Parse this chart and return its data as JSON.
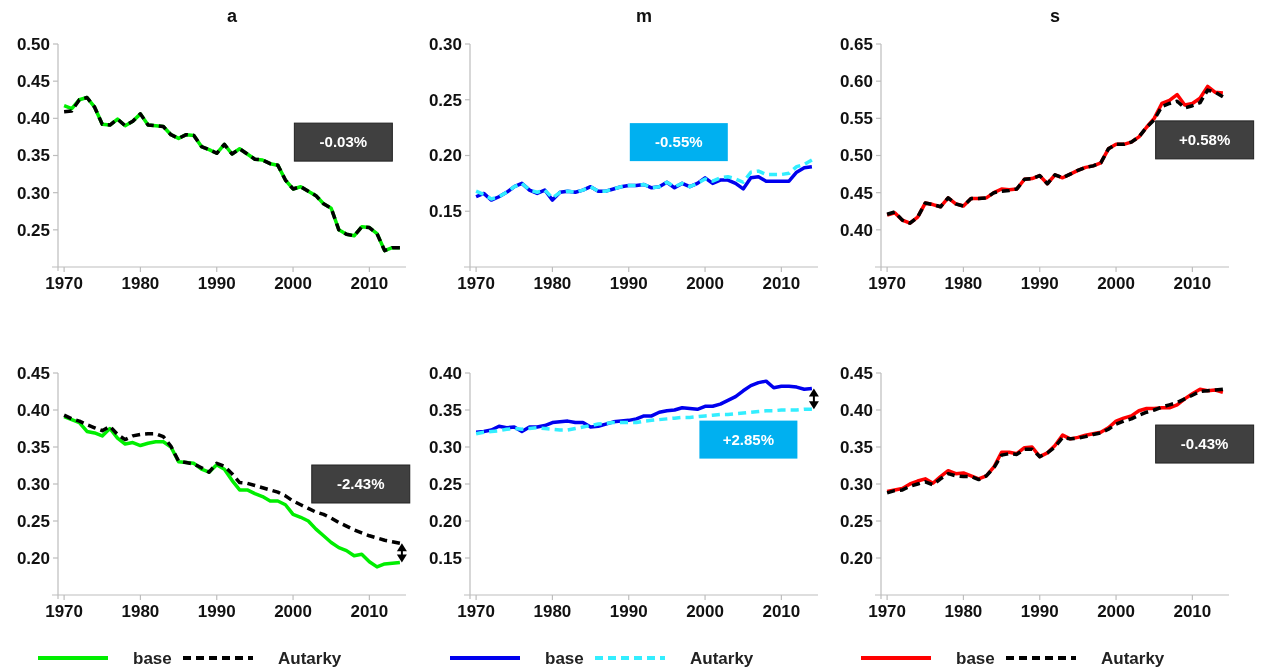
{
  "chart_data": [
    {
      "type": "line",
      "title": "a",
      "x": [
        1970,
        1971,
        1972,
        1973,
        1974,
        1975,
        1976,
        1977,
        1978,
        1979,
        1980,
        1981,
        1982,
        1983,
        1984,
        1985,
        1986,
        1987,
        1988,
        1989,
        1990,
        1991,
        1992,
        1993,
        1994,
        1995,
        1996,
        1997,
        1998,
        1999,
        2000,
        2001,
        2002,
        2003,
        2004,
        2005,
        2006,
        2007,
        2008,
        2009,
        2010,
        2011,
        2012,
        2013,
        2014
      ],
      "xlim": [
        1969.2,
        2014.8
      ],
      "xticks": [
        1970,
        1980,
        1990,
        2000,
        2010
      ],
      "ylim": [
        0.2,
        0.5
      ],
      "yticks": [
        0.25,
        {
          "value": 0.3,
          "label": "0.30"
        },
        0.35,
        {
          "value": 0.4,
          "label": "0.40"
        },
        0.45,
        {
          "value": 0.5,
          "label": "0.50"
        }
      ],
      "annotations": [
        "-0.03%"
      ],
      "series": [
        {
          "color": "#00ee00",
          "line_style": "solid",
          "values": [
            0.417,
            0.413,
            0.425,
            0.428,
            0.415,
            0.392,
            0.391,
            0.399,
            0.39,
            0.396,
            0.406,
            0.391,
            0.39,
            0.389,
            0.378,
            0.373,
            0.378,
            0.377,
            0.362,
            0.358,
            0.353,
            0.365,
            0.352,
            0.359,
            0.352,
            0.345,
            0.344,
            0.339,
            0.337,
            0.317,
            0.305,
            0.308,
            0.302,
            0.296,
            0.285,
            0.279,
            0.25,
            0.244,
            0.242,
            0.254,
            0.253,
            0.245,
            0.222,
            0.226,
            0.226
          ]
        },
        {
          "color": "#000000",
          "line_style": "dashed",
          "values": [
            0.409,
            0.41,
            0.425,
            0.428,
            0.415,
            0.392,
            0.391,
            0.399,
            0.39,
            0.396,
            0.406,
            0.391,
            0.39,
            0.389,
            0.378,
            0.373,
            0.378,
            0.377,
            0.362,
            0.358,
            0.353,
            0.365,
            0.352,
            0.359,
            0.352,
            0.345,
            0.344,
            0.339,
            0.337,
            0.317,
            0.305,
            0.308,
            0.302,
            0.296,
            0.285,
            0.279,
            0.25,
            0.244,
            0.242,
            0.254,
            0.253,
            0.245,
            0.222,
            0.226,
            0.226
          ]
        }
      ]
    },
    {
      "type": "line",
      "title": "m",
      "x": [
        1970,
        1971,
        1972,
        1973,
        1974,
        1975,
        1976,
        1977,
        1978,
        1979,
        1980,
        1981,
        1982,
        1983,
        1984,
        1985,
        1986,
        1987,
        1988,
        1989,
        1990,
        1991,
        1992,
        1993,
        1994,
        1995,
        1996,
        1997,
        1998,
        1999,
        2000,
        2001,
        2002,
        2003,
        2004,
        2005,
        2006,
        2007,
        2008,
        2009,
        2010,
        2011,
        2012,
        2013,
        2014
      ],
      "xlim": [
        1969.2,
        2014.8
      ],
      "xticks": [
        1970,
        1980,
        1990,
        2000,
        2010
      ],
      "ylim": [
        0.1,
        0.3
      ],
      "yticks": [
        0.15,
        {
          "value": 0.2,
          "label": "0.20"
        },
        0.25,
        {
          "value": 0.3,
          "label": "0.30"
        }
      ],
      "annotations": [
        "-0.55%"
      ],
      "series": [
        {
          "color": "#0000ee",
          "line_style": "solid",
          "values": [
            0.163,
            0.166,
            0.16,
            0.163,
            0.167,
            0.172,
            0.175,
            0.169,
            0.166,
            0.169,
            0.16,
            0.167,
            0.168,
            0.167,
            0.169,
            0.172,
            0.168,
            0.168,
            0.17,
            0.172,
            0.173,
            0.173,
            0.174,
            0.171,
            0.172,
            0.176,
            0.171,
            0.175,
            0.172,
            0.175,
            0.18,
            0.175,
            0.178,
            0.178,
            0.175,
            0.17,
            0.18,
            0.181,
            0.177,
            0.177,
            0.177,
            0.177,
            0.185,
            0.189,
            0.19
          ]
        },
        {
          "color": "#33eeff",
          "line_style": "dashed",
          "values": [
            0.168,
            0.165,
            0.161,
            0.163,
            0.167,
            0.172,
            0.175,
            0.169,
            0.167,
            0.169,
            0.162,
            0.167,
            0.168,
            0.167,
            0.169,
            0.172,
            0.168,
            0.168,
            0.17,
            0.172,
            0.173,
            0.173,
            0.174,
            0.171,
            0.172,
            0.176,
            0.172,
            0.175,
            0.172,
            0.175,
            0.179,
            0.177,
            0.18,
            0.181,
            0.179,
            0.176,
            0.185,
            0.186,
            0.183,
            0.183,
            0.183,
            0.184,
            0.19,
            0.192,
            0.196
          ]
        }
      ]
    },
    {
      "type": "line",
      "title": "s",
      "x": [
        1970,
        1971,
        1972,
        1973,
        1974,
        1975,
        1976,
        1977,
        1978,
        1979,
        1980,
        1981,
        1982,
        1983,
        1984,
        1985,
        1986,
        1987,
        1988,
        1989,
        1990,
        1991,
        1992,
        1993,
        1994,
        1995,
        1996,
        1997,
        1998,
        1999,
        2000,
        2001,
        2002,
        2003,
        2004,
        2005,
        2006,
        2007,
        2008,
        2009,
        2010,
        2011,
        2012,
        2013,
        2014
      ],
      "xlim": [
        1969.2,
        2014.8
      ],
      "xticks": [
        1970,
        1980,
        1990,
        2000,
        2010
      ],
      "ylim": [
        0.35,
        0.65
      ],
      "yticks": [
        {
          "value": 0.4,
          "label": "0.40"
        },
        0.45,
        {
          "value": 0.5,
          "label": "0.50"
        },
        0.55,
        {
          "value": 0.6,
          "label": "0.60"
        },
        0.65
      ],
      "annotations": [
        "+0.58%"
      ],
      "series": [
        {
          "color": "#ff0000",
          "line_style": "solid",
          "values": [
            0.42,
            0.423,
            0.413,
            0.409,
            0.417,
            0.436,
            0.434,
            0.431,
            0.443,
            0.435,
            0.432,
            0.442,
            0.442,
            0.443,
            0.45,
            0.455,
            0.454,
            0.455,
            0.468,
            0.469,
            0.473,
            0.462,
            0.474,
            0.47,
            0.475,
            0.48,
            0.484,
            0.486,
            0.49,
            0.509,
            0.515,
            0.515,
            0.518,
            0.525,
            0.538,
            0.55,
            0.57,
            0.574,
            0.582,
            0.568,
            0.57,
            0.577,
            0.593,
            0.585,
            0.584
          ]
        },
        {
          "color": "#000000",
          "line_style": "dashed",
          "values": [
            0.421,
            0.424,
            0.413,
            0.409,
            0.417,
            0.436,
            0.434,
            0.431,
            0.443,
            0.435,
            0.432,
            0.442,
            0.442,
            0.443,
            0.45,
            0.452,
            0.453,
            0.455,
            0.468,
            0.469,
            0.473,
            0.462,
            0.474,
            0.47,
            0.475,
            0.48,
            0.484,
            0.486,
            0.49,
            0.509,
            0.515,
            0.515,
            0.518,
            0.525,
            0.538,
            0.548,
            0.566,
            0.57,
            0.573,
            0.564,
            0.567,
            0.571,
            0.588,
            0.585,
            0.579
          ]
        }
      ]
    },
    {
      "type": "line",
      "x": [
        1970,
        1971,
        1972,
        1973,
        1974,
        1975,
        1976,
        1977,
        1978,
        1979,
        1980,
        1981,
        1982,
        1983,
        1984,
        1985,
        1986,
        1987,
        1988,
        1989,
        1990,
        1991,
        1992,
        1993,
        1994,
        1995,
        1996,
        1997,
        1998,
        1999,
        2000,
        2001,
        2002,
        2003,
        2004,
        2005,
        2006,
        2007,
        2008,
        2009,
        2010,
        2011,
        2012,
        2013,
        2014
      ],
      "xlim": [
        1969.2,
        2014.8
      ],
      "xticks": [
        1970,
        1980,
        1990,
        2000,
        2010
      ],
      "ylim": [
        0.15,
        0.45
      ],
      "yticks": [
        {
          "value": 0.2,
          "label": "0.20"
        },
        0.25,
        {
          "value": 0.3,
          "label": "0.30"
        },
        0.35,
        {
          "value": 0.4,
          "label": "0.40"
        },
        0.45
      ],
      "annotations": [
        "-2.43%"
      ],
      "legend": "bottom",
      "series": [
        {
          "name": "base",
          "color": "#00ee00",
          "line_style": "solid",
          "values": [
            0.391,
            0.387,
            0.383,
            0.371,
            0.369,
            0.365,
            0.375,
            0.362,
            0.354,
            0.356,
            0.352,
            0.355,
            0.357,
            0.357,
            0.35,
            0.33,
            0.329,
            0.328,
            0.32,
            0.316,
            0.326,
            0.32,
            0.305,
            0.292,
            0.292,
            0.287,
            0.283,
            0.277,
            0.277,
            0.272,
            0.259,
            0.255,
            0.25,
            0.239,
            0.23,
            0.221,
            0.214,
            0.21,
            0.203,
            0.205,
            0.195,
            0.188,
            0.192,
            0.193,
            0.194
          ]
        },
        {
          "name": "Autarky",
          "color": "#000000",
          "line_style": "dashed",
          "values": [
            0.393,
            0.388,
            0.385,
            0.38,
            0.376,
            0.372,
            0.378,
            0.367,
            0.36,
            0.365,
            0.367,
            0.368,
            0.368,
            0.364,
            0.351,
            0.331,
            0.329,
            0.327,
            0.322,
            0.316,
            0.328,
            0.324,
            0.314,
            0.302,
            0.301,
            0.298,
            0.295,
            0.292,
            0.289,
            0.284,
            0.277,
            0.272,
            0.267,
            0.262,
            0.259,
            0.254,
            0.248,
            0.243,
            0.238,
            0.234,
            0.23,
            0.227,
            0.224,
            0.222,
            0.22
          ]
        }
      ]
    },
    {
      "type": "line",
      "x": [
        1970,
        1971,
        1972,
        1973,
        1974,
        1975,
        1976,
        1977,
        1978,
        1979,
        1980,
        1981,
        1982,
        1983,
        1984,
        1985,
        1986,
        1987,
        1988,
        1989,
        1990,
        1991,
        1992,
        1993,
        1994,
        1995,
        1996,
        1997,
        1998,
        1999,
        2000,
        2001,
        2002,
        2003,
        2004,
        2005,
        2006,
        2007,
        2008,
        2009,
        2010,
        2011,
        2012,
        2013,
        2014
      ],
      "xlim": [
        1969.2,
        2014.8
      ],
      "xticks": [
        1970,
        1980,
        1990,
        2000,
        2010
      ],
      "ylim": [
        0.1,
        0.4
      ],
      "yticks": [
        0.15,
        {
          "value": 0.2,
          "label": "0.20"
        },
        0.25,
        {
          "value": 0.3,
          "label": "0.30"
        },
        0.35,
        {
          "value": 0.4,
          "label": "0.40"
        }
      ],
      "annotations": [
        "+2.85%"
      ],
      "legend": "bottom",
      "series": [
        {
          "name": "base",
          "color": "#0000ee",
          "line_style": "solid",
          "values": [
            0.32,
            0.321,
            0.323,
            0.328,
            0.326,
            0.327,
            0.321,
            0.327,
            0.327,
            0.329,
            0.333,
            0.334,
            0.335,
            0.333,
            0.333,
            0.327,
            0.328,
            0.331,
            0.334,
            0.335,
            0.336,
            0.338,
            0.342,
            0.342,
            0.347,
            0.349,
            0.35,
            0.353,
            0.352,
            0.351,
            0.355,
            0.355,
            0.358,
            0.363,
            0.368,
            0.376,
            0.383,
            0.387,
            0.389,
            0.38,
            0.382,
            0.382,
            0.381,
            0.378,
            0.379
          ]
        },
        {
          "name": "Autarky",
          "color": "#33eeff",
          "line_style": "dashed",
          "values": [
            0.318,
            0.32,
            0.321,
            0.322,
            0.324,
            0.325,
            0.324,
            0.325,
            0.326,
            0.325,
            0.324,
            0.323,
            0.323,
            0.325,
            0.327,
            0.329,
            0.331,
            0.332,
            0.333,
            0.333,
            0.333,
            0.333,
            0.335,
            0.336,
            0.337,
            0.338,
            0.339,
            0.34,
            0.34,
            0.341,
            0.342,
            0.343,
            0.344,
            0.344,
            0.345,
            0.346,
            0.347,
            0.348,
            0.349,
            0.349,
            0.35,
            0.35,
            0.35,
            0.351,
            0.351
          ]
        }
      ]
    },
    {
      "type": "line",
      "x": [
        1970,
        1971,
        1972,
        1973,
        1974,
        1975,
        1976,
        1977,
        1978,
        1979,
        1980,
        1981,
        1982,
        1983,
        1984,
        1985,
        1986,
        1987,
        1988,
        1989,
        1990,
        1991,
        1992,
        1993,
        1994,
        1995,
        1996,
        1997,
        1998,
        1999,
        2000,
        2001,
        2002,
        2003,
        2004,
        2005,
        2006,
        2007,
        2008,
        2009,
        2010,
        2011,
        2012,
        2013,
        2014
      ],
      "xlim": [
        1969.2,
        2014.8
      ],
      "xticks": [
        1970,
        1980,
        1990,
        2000,
        2010
      ],
      "ylim": [
        0.15,
        0.45
      ],
      "yticks": [
        {
          "value": 0.2,
          "label": "0.20"
        },
        0.25,
        {
          "value": 0.3,
          "label": "0.30"
        },
        0.35,
        {
          "value": 0.4,
          "label": "0.40"
        },
        0.45
      ],
      "annotations": [
        "-0.43%"
      ],
      "legend": "bottom",
      "series": [
        {
          "name": "base",
          "color": "#ff0000",
          "line_style": "solid",
          "values": [
            0.29,
            0.292,
            0.294,
            0.3,
            0.304,
            0.307,
            0.301,
            0.31,
            0.318,
            0.314,
            0.315,
            0.311,
            0.307,
            0.311,
            0.323,
            0.343,
            0.343,
            0.341,
            0.349,
            0.35,
            0.337,
            0.342,
            0.352,
            0.366,
            0.361,
            0.363,
            0.366,
            0.368,
            0.37,
            0.376,
            0.385,
            0.389,
            0.392,
            0.399,
            0.402,
            0.402,
            0.403,
            0.403,
            0.407,
            0.415,
            0.422,
            0.428,
            0.426,
            0.427,
            0.424
          ]
        },
        {
          "name": "Autarky",
          "color": "#000000",
          "line_style": "dashed",
          "values": [
            0.288,
            0.291,
            0.292,
            0.297,
            0.3,
            0.303,
            0.299,
            0.307,
            0.314,
            0.311,
            0.31,
            0.31,
            0.306,
            0.311,
            0.322,
            0.339,
            0.341,
            0.34,
            0.347,
            0.347,
            0.337,
            0.342,
            0.35,
            0.363,
            0.361,
            0.362,
            0.364,
            0.367,
            0.369,
            0.374,
            0.381,
            0.385,
            0.388,
            0.393,
            0.397,
            0.4,
            0.404,
            0.407,
            0.41,
            0.415,
            0.42,
            0.425,
            0.426,
            0.427,
            0.428
          ]
        }
      ]
    }
  ]
}
